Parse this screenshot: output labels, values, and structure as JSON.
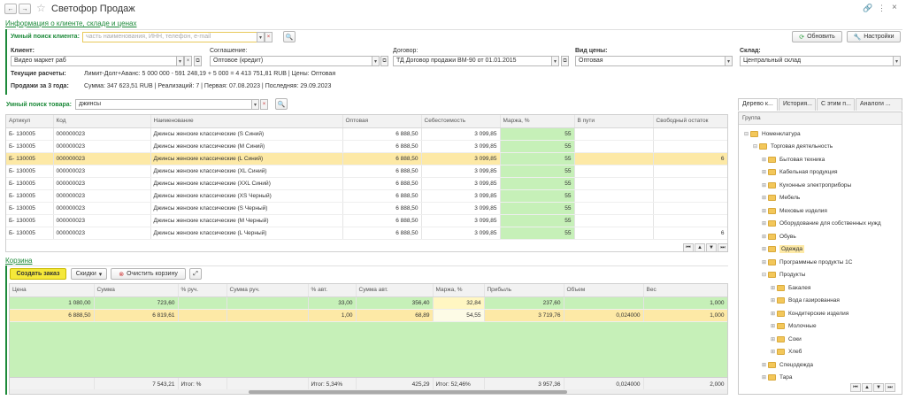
{
  "window": {
    "title": "Светофор Продаж"
  },
  "section_customer": "Информация о клиенте, складе и ценах",
  "smart_search_client": {
    "label": "Умный поиск клиента:",
    "placeholder": "часть наименования, ИНН, телефон, e-mail"
  },
  "buttons": {
    "update": "Обновить",
    "settings": "Настройки"
  },
  "client": {
    "label": "Клиент:",
    "value": "Видео маркет раб"
  },
  "agreement": {
    "label": "Соглашение:",
    "value": "Оптовое (кредит)"
  },
  "contract": {
    "label": "Договор:",
    "value": "ТД Договор продажи ВМ-90 от 01.01.2015"
  },
  "price_type": {
    "label": "Вид цены:",
    "value": "Оптовая"
  },
  "warehouse": {
    "label": "Склад:",
    "value": "Центральный склад"
  },
  "current_settlements": {
    "label": "Текущие расчеты:",
    "value": "Лимит-Долг+Аванс: 5 000 000 - 591 248,19 + 5 000 = 4 413 751,81 RUB | Цены: Оптовая"
  },
  "sales_3_years": {
    "label": "Продажи за 3 года:",
    "value": "Сумма: 347 623,51 RUB | Реализаций: 7 | Первая: 07.08.2023 | Последняя: 29.09.2023"
  },
  "smart_search_product": {
    "label": "Умный поиск товара:",
    "value": "джинсы"
  },
  "products": {
    "columns": [
      "Артикул",
      "Код",
      "Наименование",
      "Оптовая",
      "Себестоимость",
      "Маржа, %",
      "В пути",
      "Свободный остаток"
    ],
    "rows": [
      [
        "Б- 130005",
        "000000023",
        "Джинсы женские классические (S Синий)",
        "6 888,50",
        "3 099,85",
        "55",
        "",
        ""
      ],
      [
        "Б- 130005",
        "000000023",
        "Джинсы женские классические (M Синий)",
        "6 888,50",
        "3 099,85",
        "55",
        "",
        ""
      ],
      [
        "Б- 130005",
        "000000023",
        "Джинсы женские классические (L Синий)",
        "6 888,50",
        "3 099,85",
        "55",
        "",
        "6"
      ],
      [
        "Б- 130005",
        "000000023",
        "Джинсы женские классические (XL Синий)",
        "6 888,50",
        "3 099,85",
        "55",
        "",
        ""
      ],
      [
        "Б- 130005",
        "000000023",
        "Джинсы женские классические (XXL Синий)",
        "6 888,50",
        "3 099,85",
        "55",
        "",
        ""
      ],
      [
        "Б- 130005",
        "000000023",
        "Джинсы женские классические (XS Черный)",
        "6 888,50",
        "3 099,85",
        "55",
        "",
        ""
      ],
      [
        "Б- 130005",
        "000000023",
        "Джинсы женские классические (S Черный)",
        "6 888,50",
        "3 099,85",
        "55",
        "",
        ""
      ],
      [
        "Б- 130005",
        "000000023",
        "Джинсы женские классические (M Черный)",
        "6 888,50",
        "3 099,85",
        "55",
        "",
        ""
      ],
      [
        "Б- 130005",
        "000000023",
        "Джинсы женские классические (L Черный)",
        "6 888,50",
        "3 099,85",
        "55",
        "",
        "6"
      ]
    ],
    "selected_row": 2
  },
  "cart": {
    "title": "Корзина",
    "create_order": "Создать заказ",
    "discounts": "Скидки",
    "clear_cart": "Очистить корзину",
    "columns": [
      "Цена",
      "Сумма",
      "% руч.",
      "Сумма руч.",
      "% авт.",
      "Сумма авт.",
      "Маржа, %",
      "Прибыль",
      "Объем",
      "Вес"
    ],
    "rows": [
      [
        "1 080,00",
        "723,60",
        "",
        "",
        "33,00",
        "356,40",
        "32,84",
        "237,60",
        "",
        "1,000"
      ],
      [
        "6 888,50",
        "6 819,61",
        "",
        "",
        "1,00",
        "68,89",
        "54,55",
        "3 719,76",
        "0,024000",
        "1,000"
      ]
    ],
    "footer": [
      "",
      "7 543,21",
      "Итог: %",
      "",
      "Итог: 5,34%",
      "425,29",
      "Итог: 52,46%",
      "3 957,36",
      "0,024000",
      "2,000"
    ]
  },
  "right_tabs": [
    "Дерево к...",
    "История...",
    "С этим п...",
    "Аналоги ..."
  ],
  "tree": {
    "header": "Группа",
    "items": [
      {
        "label": "Номенклатура",
        "level": 0,
        "exp": "⊟"
      },
      {
        "label": "Торговая деятельность",
        "level": 1,
        "exp": "⊟"
      },
      {
        "label": "Бытовая техника",
        "level": 2,
        "exp": "⊞"
      },
      {
        "label": "Кабельная продукция",
        "level": 2,
        "exp": "⊞"
      },
      {
        "label": "Кухонные электроприборы",
        "level": 2,
        "exp": "⊞"
      },
      {
        "label": "Мебель",
        "level": 2,
        "exp": "⊞"
      },
      {
        "label": "Меховые изделия",
        "level": 2,
        "exp": "⊞"
      },
      {
        "label": "Оборудование для собственных нужд",
        "level": 2,
        "exp": "⊞"
      },
      {
        "label": "Обувь",
        "level": 2,
        "exp": "⊞"
      },
      {
        "label": "Одежда",
        "level": 2,
        "exp": "⊞",
        "selected": true
      },
      {
        "label": "Программные продукты 1С",
        "level": 2,
        "exp": "⊞"
      },
      {
        "label": "Продукты",
        "level": 2,
        "exp": "⊟"
      },
      {
        "label": "Бакалея",
        "level": 3,
        "exp": "⊞"
      },
      {
        "label": "Вода газированная",
        "level": 3,
        "exp": "⊞"
      },
      {
        "label": "Кондитерские изделия",
        "level": 3,
        "exp": "⊞"
      },
      {
        "label": "Молочные",
        "level": 3,
        "exp": "⊞"
      },
      {
        "label": "Соки",
        "level": 3,
        "exp": "⊞"
      },
      {
        "label": "Хлеб",
        "level": 3,
        "exp": "⊞"
      },
      {
        "label": "Спецодежда",
        "level": 2,
        "exp": "⊞"
      },
      {
        "label": "Тара",
        "level": 2,
        "exp": "⊞"
      }
    ]
  },
  "colors": {
    "accent_green": "#1d8a3a",
    "margin_green": "#c6f0b8",
    "selected_row": "#fde9a6",
    "create_button": "#f5e83a"
  }
}
